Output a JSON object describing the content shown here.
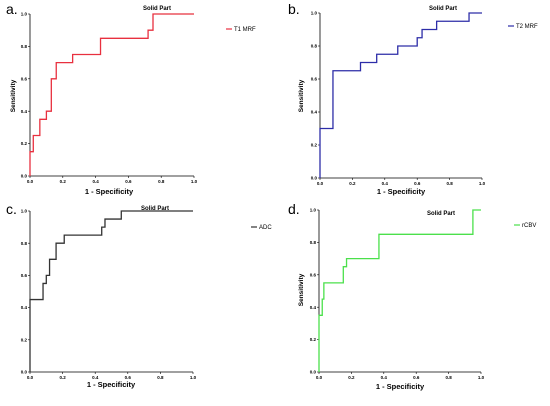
{
  "chart_data": [
    {
      "type": "line",
      "panel_letter": "a.",
      "title": "Solid Part",
      "xlabel": "1 - Specificity",
      "ylabel": "Sensitivity",
      "xlim": [
        0,
        1
      ],
      "ylim": [
        0,
        1
      ],
      "xticks": [
        "0.0",
        "0.2",
        "0.4",
        "0.6",
        "0.8",
        "1.0"
      ],
      "yticks": [
        "0.0",
        "0.2",
        "0.4",
        "0.6",
        "0.8",
        "1.0"
      ],
      "grid": false,
      "legend": "right",
      "series": [
        {
          "name": "T1 MRF",
          "color": "#e8303f",
          "x": [
            0,
            0,
            0.02,
            0.02,
            0.06,
            0.06,
            0.1,
            0.1,
            0.13,
            0.13,
            0.16,
            0.16,
            0.26,
            0.26,
            0.43,
            0.43,
            0.72,
            0.72,
            0.75,
            0.75,
            1.0
          ],
          "y": [
            0,
            0.15,
            0.15,
            0.25,
            0.25,
            0.35,
            0.35,
            0.4,
            0.4,
            0.6,
            0.6,
            0.7,
            0.7,
            0.75,
            0.75,
            0.85,
            0.85,
            0.9,
            0.9,
            1.0,
            1.0
          ]
        }
      ]
    },
    {
      "type": "line",
      "panel_letter": "b.",
      "title": "Solid Part",
      "xlabel": "1 - Specificity",
      "ylabel": "Sensitivity",
      "xlim": [
        0,
        1
      ],
      "ylim": [
        0,
        1
      ],
      "xticks": [
        "0.0",
        "0.2",
        "0.4",
        "0.6",
        "0.8",
        "1.0"
      ],
      "yticks": [
        "0.0",
        "0.2",
        "0.4",
        "0.6",
        "0.8",
        "1.0"
      ],
      "grid": false,
      "legend": "right",
      "series": [
        {
          "name": "T2 MRF",
          "color": "#2d2da8",
          "x": [
            0,
            0,
            0.08,
            0.08,
            0.25,
            0.25,
            0.35,
            0.35,
            0.48,
            0.48,
            0.6,
            0.6,
            0.63,
            0.63,
            0.72,
            0.72,
            0.92,
            0.92,
            1.0
          ],
          "y": [
            0,
            0.3,
            0.3,
            0.65,
            0.65,
            0.7,
            0.7,
            0.75,
            0.75,
            0.8,
            0.8,
            0.85,
            0.85,
            0.9,
            0.9,
            0.95,
            0.95,
            1.0,
            1.0
          ]
        }
      ]
    },
    {
      "type": "line",
      "panel_letter": "c.",
      "title": "Solid Part",
      "xlabel": "1 - Specificity",
      "ylabel": "",
      "xlim": [
        0,
        1
      ],
      "ylim": [
        0,
        1
      ],
      "xticks": [
        "0.0",
        "0.2",
        "0.4",
        "0.6",
        "0.8",
        "1.0"
      ],
      "yticks": [
        "0.0",
        "0.2",
        "0.4",
        "0.6",
        "0.8",
        "1.0"
      ],
      "grid": false,
      "legend": "right",
      "series": [
        {
          "name": "ADC",
          "color": "#333333",
          "x": [
            0,
            0,
            0.08,
            0.08,
            0.1,
            0.1,
            0.12,
            0.12,
            0.16,
            0.16,
            0.21,
            0.21,
            0.44,
            0.44,
            0.46,
            0.46,
            0.5,
            0.5,
            0.56,
            0.56,
            1.0
          ],
          "y": [
            0,
            0.45,
            0.45,
            0.55,
            0.55,
            0.6,
            0.6,
            0.7,
            0.7,
            0.8,
            0.8,
            0.85,
            0.85,
            0.9,
            0.9,
            0.95,
            0.95,
            0.95,
            0.95,
            1.0,
            1.0
          ]
        }
      ]
    },
    {
      "type": "line",
      "panel_letter": "d.",
      "title": "Solid Part",
      "xlabel": "1 - Specificity",
      "ylabel": "Sensitivity",
      "xlim": [
        0,
        1
      ],
      "ylim": [
        0,
        1
      ],
      "xticks": [
        "0.0",
        "0.2",
        "0.4",
        "0.6",
        "0.8",
        "1.0"
      ],
      "yticks": [
        "0.0",
        "0.2",
        "0.4",
        "0.6",
        "0.8",
        "1.0"
      ],
      "grid": false,
      "legend": "right",
      "series": [
        {
          "name": "rCBV",
          "color": "#4be04b",
          "x": [
            0,
            0,
            0.02,
            0.02,
            0.03,
            0.03,
            0.15,
            0.15,
            0.17,
            0.17,
            0.37,
            0.37,
            0.95,
            0.95,
            1.0
          ],
          "y": [
            0,
            0.35,
            0.35,
            0.45,
            0.45,
            0.55,
            0.55,
            0.65,
            0.65,
            0.7,
            0.7,
            0.85,
            0.85,
            1.0,
            1.0
          ]
        }
      ]
    }
  ]
}
